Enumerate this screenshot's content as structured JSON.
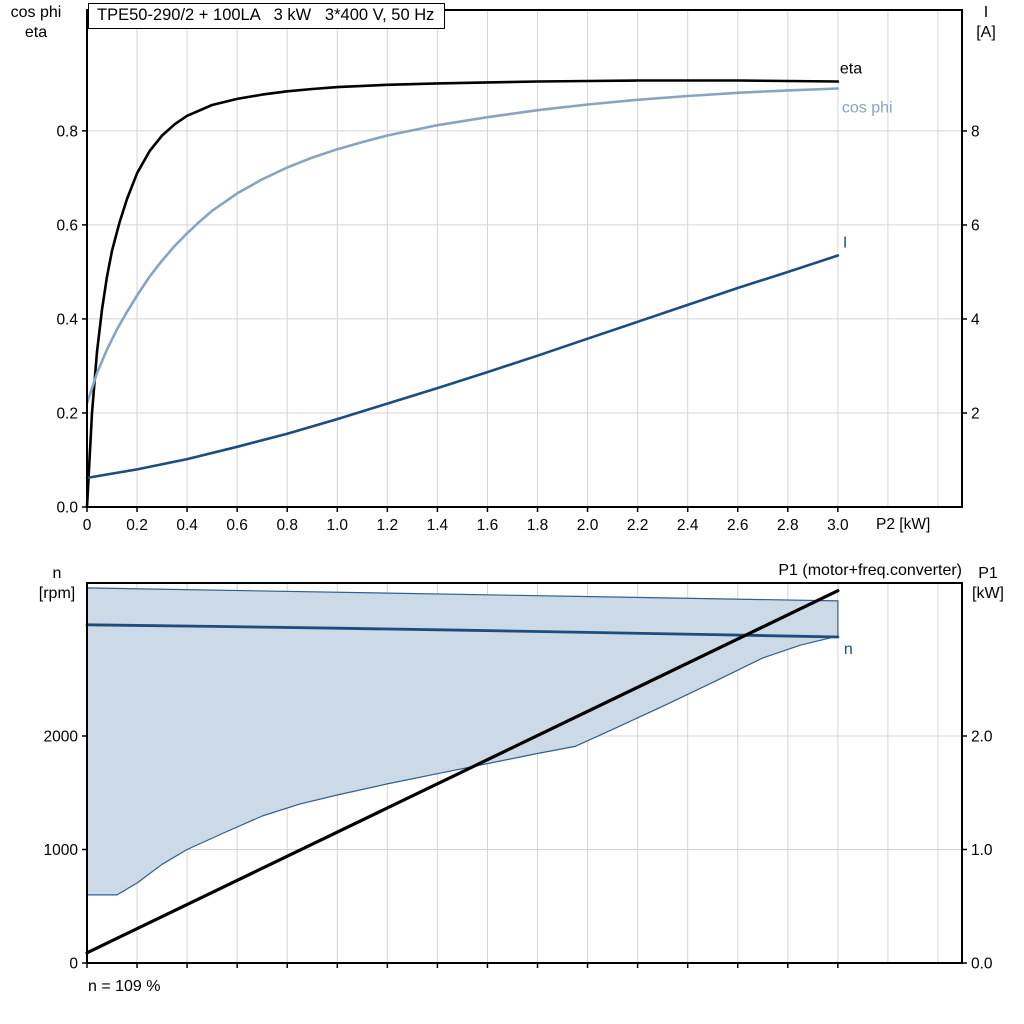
{
  "chart_data": [
    {
      "id": "motor-electrical",
      "type": "line",
      "title": "TPE50-290/2 + 100LA   3 kW   3*400 V, 50 Hz",
      "x_axis": {
        "label": "P2 [kW]",
        "range": [
          0,
          3.496
        ],
        "tick_values": [
          0,
          0.2,
          0.4,
          0.6,
          0.8,
          1.0,
          1.2,
          1.4,
          1.6,
          1.8,
          2.0,
          2.2,
          2.4,
          2.6,
          2.8,
          3.0
        ],
        "tick_labels": [
          "0",
          "0.2",
          "0.4",
          "0.6",
          "0.8",
          "1.0",
          "1.2",
          "1.4",
          "1.6",
          "1.8",
          "2.0",
          "2.2",
          "2.4",
          "2.6",
          "2.8",
          "3.0"
        ],
        "grid_extra": [
          3.2,
          3.4
        ]
      },
      "y_left_axis": {
        "label_lines": [
          "cos phi",
          "eta"
        ],
        "range": [
          0,
          1.057
        ],
        "tick_values": [
          0,
          0.2,
          0.4,
          0.6,
          0.8
        ],
        "tick_labels": [
          "0.0",
          "0.2",
          "0.4",
          "0.6",
          "0.8"
        ]
      },
      "y_right_axis": {
        "label_lines": [
          "I",
          "[A]"
        ],
        "range": [
          0,
          10.574
        ],
        "tick_values": [
          2,
          4,
          6,
          8
        ],
        "tick_labels": [
          "2",
          "4",
          "6",
          "8"
        ]
      },
      "series": [
        {
          "name": "eta",
          "label": "eta",
          "axis": "left",
          "color": "#000000",
          "width": 2.6,
          "points": [
            [
              0,
              0
            ],
            [
              0.02,
              0.2
            ],
            [
              0.04,
              0.33
            ],
            [
              0.06,
              0.42
            ],
            [
              0.08,
              0.49
            ],
            [
              0.1,
              0.545
            ],
            [
              0.13,
              0.605
            ],
            [
              0.16,
              0.655
            ],
            [
              0.2,
              0.71
            ],
            [
              0.25,
              0.757
            ],
            [
              0.3,
              0.79
            ],
            [
              0.35,
              0.814
            ],
            [
              0.4,
              0.832
            ],
            [
              0.5,
              0.855
            ],
            [
              0.6,
              0.868
            ],
            [
              0.7,
              0.877
            ],
            [
              0.8,
              0.884
            ],
            [
              0.9,
              0.889
            ],
            [
              1.0,
              0.893
            ],
            [
              1.2,
              0.898
            ],
            [
              1.4,
              0.901
            ],
            [
              1.6,
              0.903
            ],
            [
              1.8,
              0.905
            ],
            [
              2.0,
              0.906
            ],
            [
              2.2,
              0.907
            ],
            [
              2.4,
              0.907
            ],
            [
              2.6,
              0.907
            ],
            [
              2.8,
              0.906
            ],
            [
              3.0,
              0.905
            ]
          ]
        },
        {
          "name": "cos phi",
          "label": "cos phi",
          "axis": "left",
          "color": "#88a4c3",
          "width": 2.6,
          "points": [
            [
              0,
              0.22
            ],
            [
              0.04,
              0.285
            ],
            [
              0.08,
              0.335
            ],
            [
              0.12,
              0.378
            ],
            [
              0.16,
              0.415
            ],
            [
              0.2,
              0.45
            ],
            [
              0.25,
              0.49
            ],
            [
              0.3,
              0.524
            ],
            [
              0.35,
              0.555
            ],
            [
              0.4,
              0.582
            ],
            [
              0.45,
              0.607
            ],
            [
              0.5,
              0.63
            ],
            [
              0.6,
              0.667
            ],
            [
              0.7,
              0.697
            ],
            [
              0.8,
              0.722
            ],
            [
              0.9,
              0.743
            ],
            [
              1.0,
              0.761
            ],
            [
              1.1,
              0.776
            ],
            [
              1.2,
              0.79
            ],
            [
              1.4,
              0.812
            ],
            [
              1.6,
              0.829
            ],
            [
              1.8,
              0.844
            ],
            [
              2.0,
              0.856
            ],
            [
              2.2,
              0.866
            ],
            [
              2.4,
              0.874
            ],
            [
              2.6,
              0.881
            ],
            [
              2.8,
              0.886
            ],
            [
              3.0,
              0.89
            ]
          ]
        },
        {
          "name": "I",
          "label": "I",
          "axis": "right",
          "color": "#1c4d7c",
          "width": 2.6,
          "points": [
            [
              0,
              0.62
            ],
            [
              0.2,
              0.8
            ],
            [
              0.4,
              1.02
            ],
            [
              0.6,
              1.28
            ],
            [
              0.8,
              1.56
            ],
            [
              1.0,
              1.87
            ],
            [
              1.2,
              2.2
            ],
            [
              1.4,
              2.53
            ],
            [
              1.6,
              2.87
            ],
            [
              1.8,
              3.22
            ],
            [
              2.0,
              3.58
            ],
            [
              2.2,
              3.94
            ],
            [
              2.4,
              4.3
            ],
            [
              2.6,
              4.66
            ],
            [
              2.8,
              5.0
            ],
            [
              3.0,
              5.35
            ]
          ]
        }
      ]
    },
    {
      "id": "speed-power",
      "type": "line",
      "annotation": "P1 (motor+freq.converter)",
      "footnote": "n = 109 %",
      "x_axis": {
        "label": "",
        "range": [
          0,
          3.496
        ],
        "tick_values": [
          0,
          0.2,
          0.4,
          0.6,
          0.8,
          1.0,
          1.2,
          1.4,
          1.6,
          1.8,
          2.0,
          2.2,
          2.4,
          2.6,
          2.8,
          3.0
        ],
        "tick_labels": [],
        "grid_extra": [
          3.2,
          3.4
        ]
      },
      "y_left_axis": {
        "label_lines": [
          "n",
          "[rpm]"
        ],
        "range": [
          0,
          3348
        ],
        "tick_values": [
          0,
          1000,
          2000
        ],
        "tick_labels": [
          "0",
          "1000",
          "2000"
        ]
      },
      "y_right_axis": {
        "label_lines": [
          "P1",
          "[kW]"
        ],
        "range": [
          0,
          3.348
        ],
        "tick_values": [
          0,
          1,
          2
        ],
        "tick_labels": [
          "0.0",
          "1.0",
          "2.0"
        ]
      },
      "envelope": {
        "name": "speed-control-range",
        "fill": "#ccd9e7",
        "stroke": "#2f5f8c",
        "upper": [
          [
            0,
            3305
          ],
          [
            3.0,
            3190
          ]
        ],
        "lower": [
          [
            0,
            600
          ],
          [
            0.12,
            600
          ],
          [
            0.2,
            705
          ],
          [
            0.3,
            870
          ],
          [
            0.4,
            1000
          ],
          [
            0.55,
            1150
          ],
          [
            0.7,
            1295
          ],
          [
            0.85,
            1400
          ],
          [
            1.0,
            1480
          ],
          [
            1.2,
            1578
          ],
          [
            1.4,
            1668
          ],
          [
            1.6,
            1757
          ],
          [
            1.8,
            1846
          ],
          [
            1.95,
            1908
          ],
          [
            2.1,
            2058
          ],
          [
            2.3,
            2262
          ],
          [
            2.5,
            2472
          ],
          [
            2.7,
            2688
          ],
          [
            2.85,
            2800
          ],
          [
            3.0,
            2880
          ]
        ]
      },
      "series": [
        {
          "name": "n",
          "label": "n",
          "axis": "left",
          "color": "#1c4d7c",
          "width": 2.8,
          "points": [
            [
              0,
              2980
            ],
            [
              0.5,
              2966
            ],
            [
              1.0,
              2950
            ],
            [
              1.5,
              2932
            ],
            [
              2.0,
              2913
            ],
            [
              2.5,
              2893
            ],
            [
              3.0,
              2872
            ]
          ]
        },
        {
          "name": "P1",
          "label": "",
          "axis": "right",
          "color": "#000000",
          "width": 3.2,
          "points": [
            [
              0,
              0.09
            ],
            [
              3.0,
              3.28
            ]
          ]
        }
      ]
    }
  ],
  "colors": {
    "grid": "#d5d5d5",
    "axis": "#000000",
    "dark_blue": "#1c4d7c",
    "light_blue": "#88a4c3",
    "envelope_fill": "#ccd9e7"
  }
}
